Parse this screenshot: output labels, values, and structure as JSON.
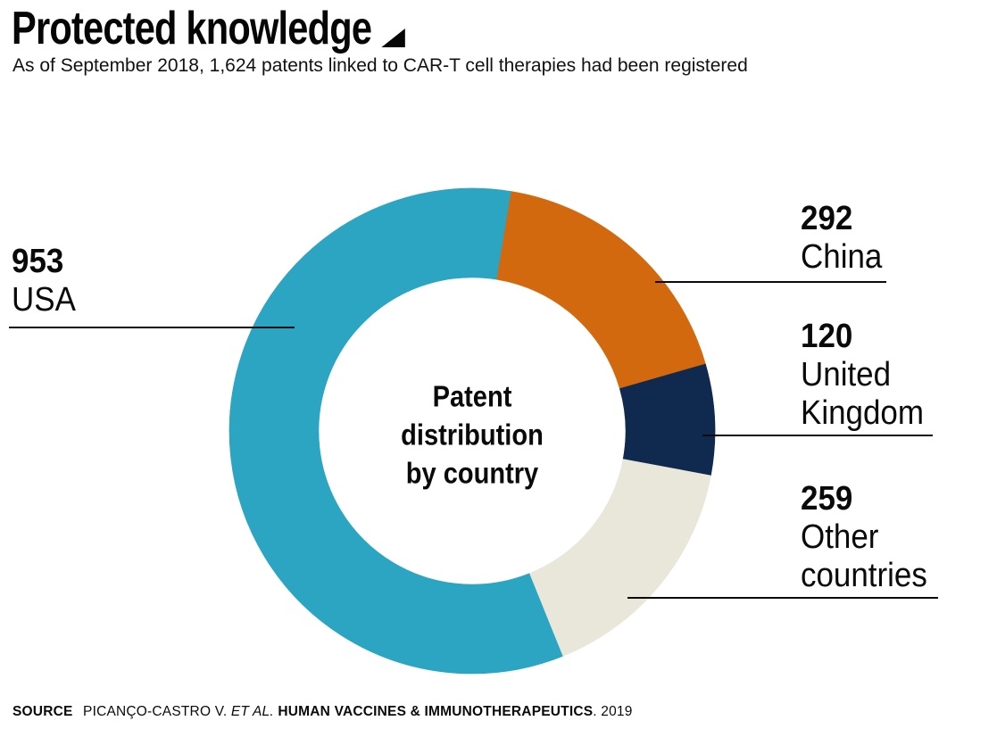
{
  "header": {
    "title": "Protected knowledge",
    "subtitle": "As of September 2018, 1,624 patents linked to CAR-T cell therapies had been registered"
  },
  "chart_data": {
    "type": "pie",
    "variant": "donut",
    "title": "Patent distribution by country",
    "center_label_lines": [
      "Patent",
      "distribution",
      "by country"
    ],
    "total": 1624,
    "unit": "patents",
    "categories": [
      "USA",
      "China",
      "United Kingdom",
      "Other countries"
    ],
    "values": [
      953,
      292,
      120,
      259
    ],
    "segments": [
      {
        "label": "USA",
        "value": 953,
        "color": "#2BA5C1"
      },
      {
        "label": "China",
        "value": 292,
        "color": "#D2690E"
      },
      {
        "label": "United Kingdom",
        "value": 120,
        "color": "#0F2A4E"
      },
      {
        "label": "Other countries",
        "value": 259,
        "color": "#E9E7DA"
      }
    ],
    "legend_position": "callouts",
    "grid": false
  },
  "callouts": {
    "usa": {
      "value": "953",
      "lines": [
        "USA"
      ]
    },
    "china": {
      "value": "292",
      "lines": [
        "China"
      ]
    },
    "uk": {
      "value": "120",
      "lines": [
        "United",
        "Kingdom"
      ]
    },
    "other": {
      "value": "259",
      "lines": [
        "Other",
        "countries"
      ]
    }
  },
  "source": {
    "label": "SOURCE",
    "authors": "PICANÇO-CASTRO V.",
    "et_al": "ET AL.",
    "journal": "HUMAN VACCINES & IMMUNOTHERAPEUTICS",
    "tail": ". 2019"
  },
  "colors": {
    "teal": "#2BA5C1",
    "orange": "#D2690E",
    "navy": "#0F2A4E",
    "cream": "#E9E7DA",
    "ink": "#0A0A0A"
  }
}
